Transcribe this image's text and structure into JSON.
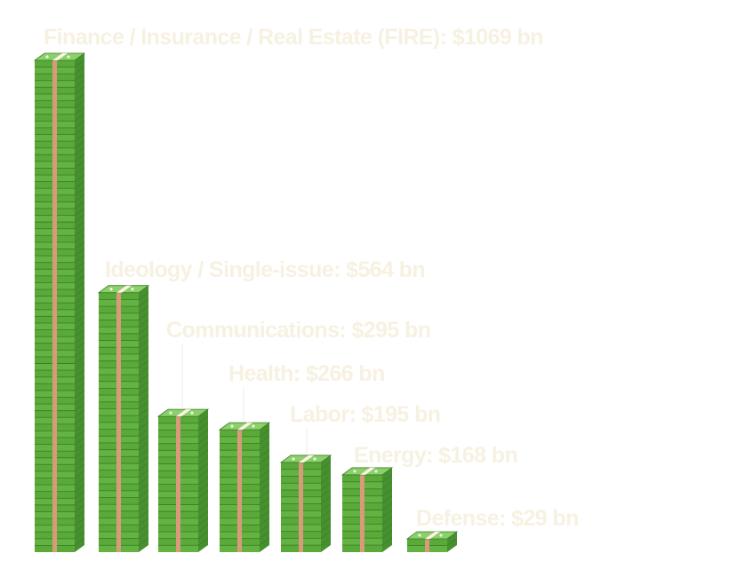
{
  "chart_data": {
    "type": "bar",
    "title": "",
    "xlabel": "",
    "ylabel": "",
    "unit": "$ bn",
    "categories": [
      "Finance / Insurance / Real Estate (FIRE)",
      "Ideology / Single-issue",
      "Communications",
      "Health",
      "Labor",
      "Energy",
      "Defense"
    ],
    "values": [
      1069,
      564,
      295,
      266,
      195,
      168,
      29
    ],
    "data_labels": [
      "Finance / Insurance / Real Estate (FIRE): $1069 bn",
      "Ideology / Single-issue: $564 bn",
      "Communications: $295 bn",
      "Health: $266 bn",
      "Labor: $195 bn",
      "Energy: $168 bn",
      "Defense: $29 bn"
    ],
    "ylim": [
      0,
      1069
    ],
    "colors": {
      "bill_front": "#5aaa3a",
      "bill_front_alt": "#63b343",
      "bill_line": "#3f7f28",
      "bill_side": "#469030",
      "bill_top": "#8bd06a",
      "band": "#d99a7c",
      "band_top": "#fff2e6",
      "label": "#f7f1e2"
    }
  }
}
